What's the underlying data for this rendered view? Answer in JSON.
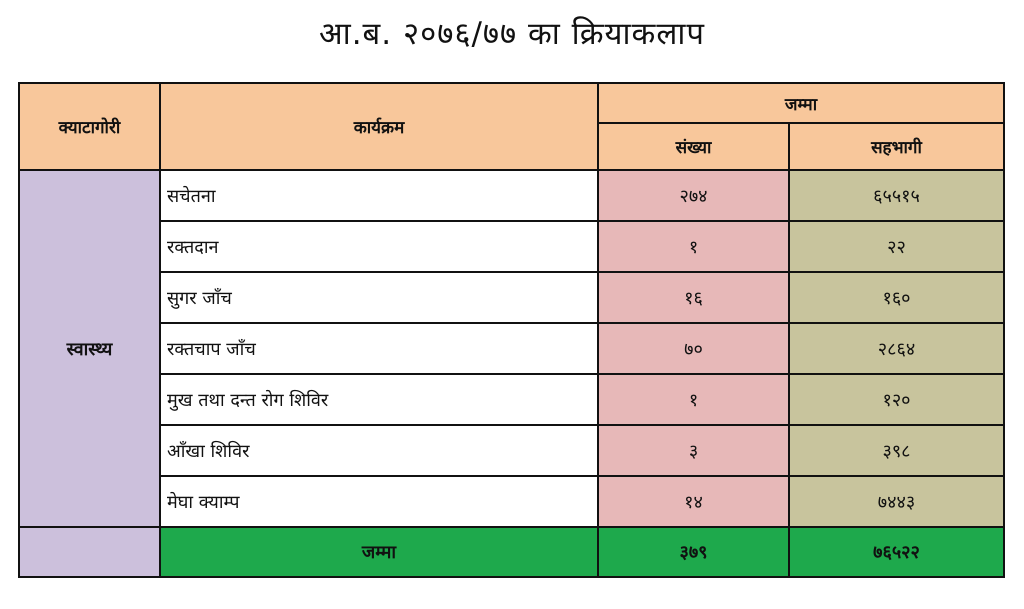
{
  "title": "आ.ब. २०७६/७७ का क्रियाकलाप",
  "headers": {
    "category": "क्याटागोरी",
    "program": "कार्यक्रम",
    "total_group": "जम्मा",
    "count": "संख्या",
    "participants": "सहभागी"
  },
  "category_name": "स्वास्थ्य",
  "rows": [
    {
      "program": "सचेतना",
      "count": "२७४",
      "participants": "६५५१५"
    },
    {
      "program": "रक्तदान",
      "count": "१",
      "participants": "२२"
    },
    {
      "program": "सुगर जाँच",
      "count": "१६",
      "participants": "१६०"
    },
    {
      "program": "रक्तचाप जाँच",
      "count": "७०",
      "participants": "२८६४"
    },
    {
      "program": "मुख तथा दन्त रोग शिविर",
      "count": "१",
      "participants": "१२०"
    },
    {
      "program": "आँखा शिविर",
      "count": "३",
      "participants": "३९८"
    },
    {
      "program": "मेघा क्याम्प",
      "count": "१४",
      "participants": "७४४३"
    }
  ],
  "total": {
    "label": "जम्मा",
    "count": "३७९",
    "participants": "७६५२२"
  },
  "colors": {
    "header_bg": "#f8c79b",
    "category_bg": "#ccc0dc",
    "count_bg": "#e7b8b8",
    "participants_bg": "#c8c49d",
    "total_bg": "#1ea94c"
  }
}
